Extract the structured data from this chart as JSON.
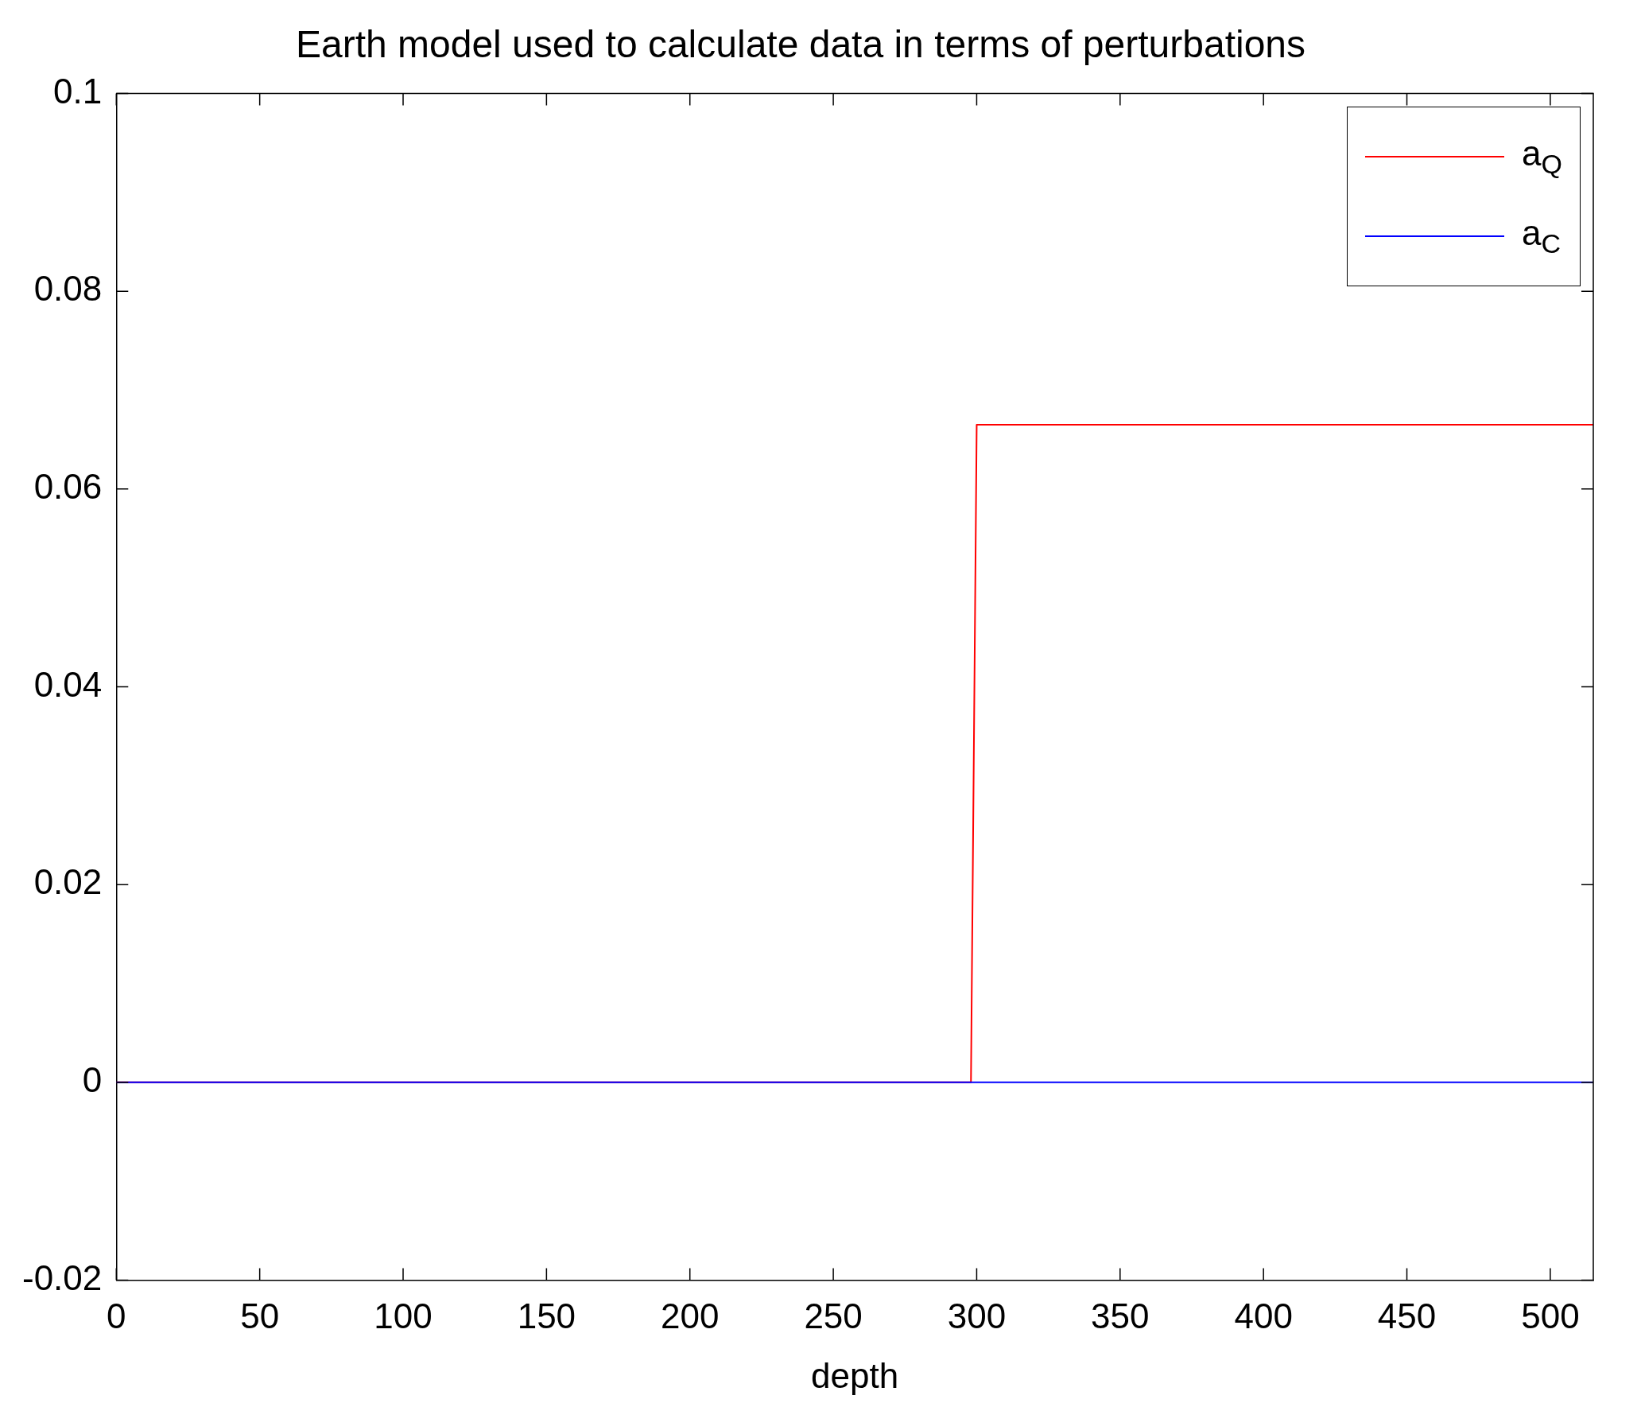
{
  "chart_data": {
    "type": "line",
    "title": "Earth model used to calculate data in terms of perturbations",
    "xlabel": "depth",
    "xlim": [
      0,
      515
    ],
    "xticks": [
      0,
      50,
      100,
      150,
      200,
      250,
      300,
      350,
      400,
      450,
      500
    ],
    "ylim": [
      -0.02,
      0.1
    ],
    "yticks": [
      -0.02,
      0,
      0.02,
      0.04,
      0.06,
      0.08,
      0.1
    ],
    "grid": false,
    "legend": "top right",
    "marker": "none",
    "line_style": "solid",
    "series": [
      {
        "name": "a$_{Q}$",
        "color": "#ff0000",
        "x": [
          0,
          298,
          300,
          515
        ],
        "values": [
          0,
          0,
          0.0665,
          0.0665
        ]
      },
      {
        "name": "a$_{C}$",
        "color": "#0000ff",
        "x": [
          0,
          515
        ],
        "values": [
          0,
          0
        ]
      }
    ]
  }
}
